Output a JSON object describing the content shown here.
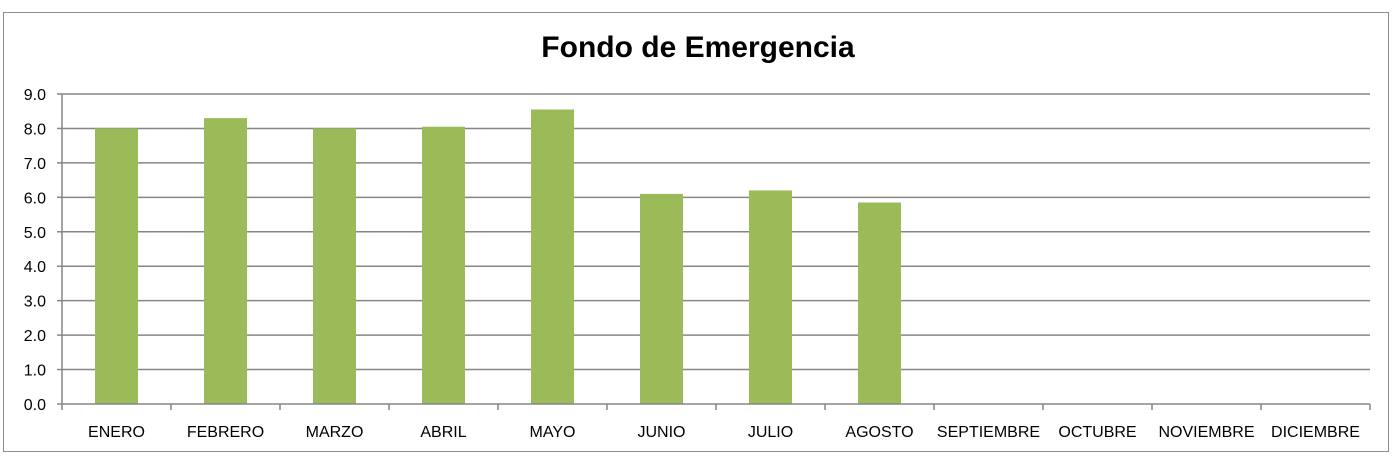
{
  "chart_data": {
    "type": "bar",
    "title": "Fondo de Emergencia",
    "xlabel": "",
    "ylabel": "",
    "categories": [
      "ENERO",
      "FEBRERO",
      "MARZO",
      "ABRIL",
      "MAYO",
      "JUNIO",
      "JULIO",
      "AGOSTO",
      "SEPTIEMBRE",
      "OCTUBRE",
      "NOVIEMBRE",
      "DICIEMBRE"
    ],
    "values": [
      8.0,
      8.3,
      8.0,
      8.05,
      8.55,
      6.1,
      6.2,
      5.85,
      null,
      null,
      null,
      null
    ],
    "ylim": [
      0,
      9
    ],
    "yticks": [
      "0.0",
      "1.0",
      "2.0",
      "3.0",
      "4.0",
      "5.0",
      "6.0",
      "7.0",
      "8.0",
      "9.0"
    ],
    "grid": true,
    "legend": "none",
    "bar_color": "#9BBB59",
    "gridline_color": "#868686"
  }
}
